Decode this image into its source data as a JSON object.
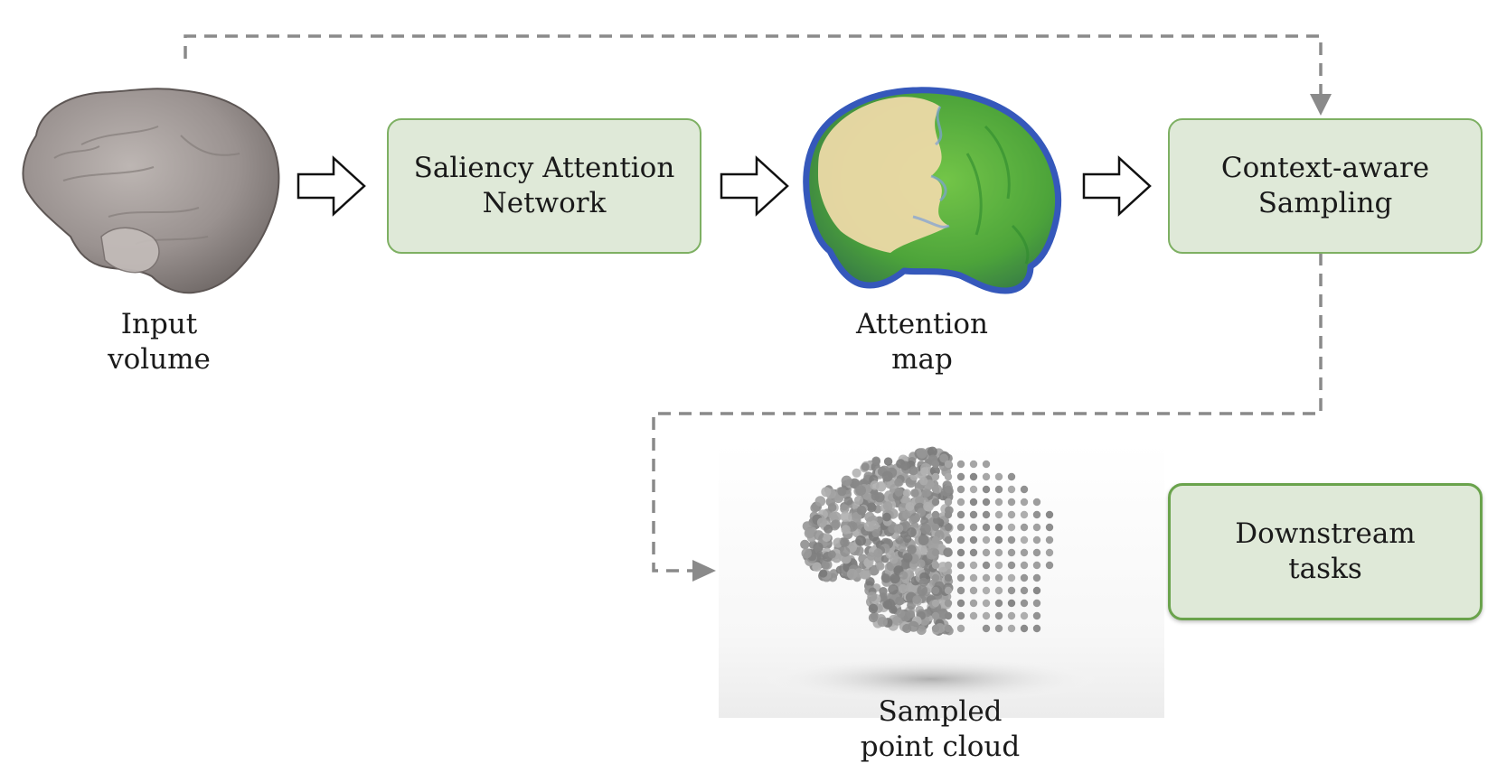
{
  "nodes": {
    "saliency_network": {
      "line1": "Saliency Attention",
      "line2": "Network"
    },
    "context_sampling": {
      "line1": "Context-aware",
      "line2": "Sampling"
    },
    "downstream": {
      "line1": "Downstream",
      "line2": "tasks"
    }
  },
  "captions": {
    "input_volume": {
      "line1": "Input",
      "line2": "volume"
    },
    "attention_map": {
      "line1": "Attention",
      "line2": "map"
    },
    "point_cloud": {
      "line1": "Sampled",
      "line2": "point cloud"
    }
  },
  "colors": {
    "box_fill": "#dfe9d8",
    "box_border": "#7eb063",
    "dashed_arrow": "#8a8a8a",
    "brain_volume": "#9a9290",
    "attention_green": "#4aa52a",
    "attention_blue": "#2b50b8",
    "attention_tan": "#ecd9a6",
    "point_gray": "#8c8c8c"
  },
  "icons": [
    "brain-volume-image",
    "attention-map-image",
    "point-cloud-image",
    "hollow-right-arrow-icon",
    "dashed-arrow-icon"
  ]
}
